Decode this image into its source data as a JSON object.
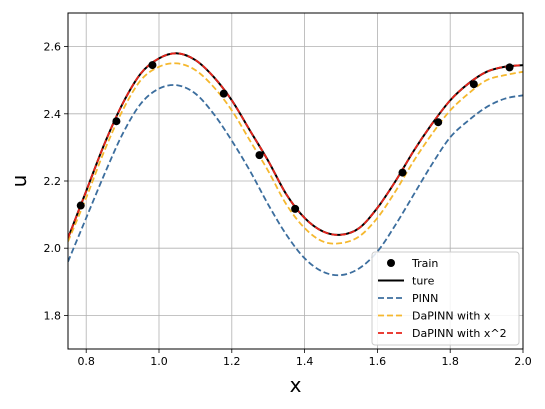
{
  "chart_data": {
    "type": "line",
    "xlabel": "x",
    "ylabel": "u",
    "xlim": [
      0.75,
      2.0
    ],
    "ylim": [
      1.7,
      2.7
    ],
    "xticks": [
      "0.8",
      "1.0",
      "1.2",
      "1.4",
      "1.6",
      "1.8",
      "2.0"
    ],
    "yticks": [
      "1.8",
      "2.0",
      "2.2",
      "2.4",
      "2.6"
    ],
    "grid": true,
    "legend_position": "bottom-right",
    "series": [
      {
        "name": "ture",
        "style": "solid",
        "color": "#000000",
        "x": [
          0.75,
          0.8,
          0.85,
          0.9,
          0.95,
          1.0,
          1.05,
          1.1,
          1.15,
          1.2,
          1.25,
          1.3,
          1.35,
          1.4,
          1.45,
          1.5,
          1.55,
          1.6,
          1.65,
          1.7,
          1.75,
          1.8,
          1.85,
          1.9,
          1.95,
          2.0
        ],
        "y": [
          2.03,
          2.17,
          2.31,
          2.43,
          2.52,
          2.565,
          2.58,
          2.56,
          2.51,
          2.44,
          2.35,
          2.26,
          2.16,
          2.09,
          2.05,
          2.04,
          2.06,
          2.12,
          2.2,
          2.29,
          2.37,
          2.44,
          2.49,
          2.525,
          2.54,
          2.545
        ]
      },
      {
        "name": "PINN",
        "style": "dashed",
        "color": "#3c6e9e",
        "x": [
          0.75,
          0.8,
          0.85,
          0.9,
          0.95,
          1.0,
          1.05,
          1.1,
          1.15,
          1.2,
          1.25,
          1.3,
          1.35,
          1.4,
          1.45,
          1.5,
          1.55,
          1.6,
          1.65,
          1.7,
          1.75,
          1.8,
          1.85,
          1.9,
          1.95,
          2.0
        ],
        "y": [
          1.96,
          2.09,
          2.22,
          2.34,
          2.43,
          2.475,
          2.485,
          2.46,
          2.4,
          2.32,
          2.23,
          2.13,
          2.04,
          1.97,
          1.93,
          1.92,
          1.94,
          1.99,
          2.07,
          2.16,
          2.25,
          2.33,
          2.38,
          2.42,
          2.445,
          2.455
        ]
      },
      {
        "name": "DaPINN with x",
        "style": "dashed",
        "color": "#f5b82e",
        "x": [
          0.75,
          0.8,
          0.85,
          0.9,
          0.95,
          1.0,
          1.05,
          1.1,
          1.15,
          1.2,
          1.25,
          1.3,
          1.35,
          1.4,
          1.45,
          1.5,
          1.55,
          1.6,
          1.65,
          1.7,
          1.75,
          1.8,
          1.85,
          1.9,
          1.95,
          2.0
        ],
        "y": [
          2.02,
          2.15,
          2.29,
          2.41,
          2.5,
          2.54,
          2.55,
          2.53,
          2.48,
          2.41,
          2.32,
          2.23,
          2.13,
          2.06,
          2.02,
          2.015,
          2.035,
          2.09,
          2.17,
          2.26,
          2.34,
          2.41,
          2.46,
          2.5,
          2.515,
          2.525
        ]
      },
      {
        "name": "DaPINN with x^2",
        "style": "dashed",
        "color": "#e8231a",
        "x": [
          0.75,
          0.8,
          0.85,
          0.9,
          0.95,
          1.0,
          1.05,
          1.1,
          1.15,
          1.2,
          1.25,
          1.3,
          1.35,
          1.4,
          1.45,
          1.5,
          1.55,
          1.6,
          1.65,
          1.7,
          1.75,
          1.8,
          1.85,
          1.9,
          1.95,
          2.0
        ],
        "y": [
          2.03,
          2.17,
          2.31,
          2.43,
          2.52,
          2.565,
          2.58,
          2.56,
          2.51,
          2.44,
          2.35,
          2.26,
          2.16,
          2.09,
          2.05,
          2.04,
          2.06,
          2.12,
          2.2,
          2.29,
          2.37,
          2.44,
          2.49,
          2.525,
          2.54,
          2.545
        ]
      }
    ],
    "train": {
      "name": "Train",
      "color": "#000000",
      "x": [
        0.785,
        0.883,
        0.982,
        1.178,
        1.276,
        1.374,
        1.669,
        1.767,
        1.865,
        1.963
      ],
      "y": [
        2.127,
        2.378,
        2.545,
        2.46,
        2.277,
        2.117,
        2.225,
        2.375,
        2.488,
        2.538
      ]
    }
  }
}
